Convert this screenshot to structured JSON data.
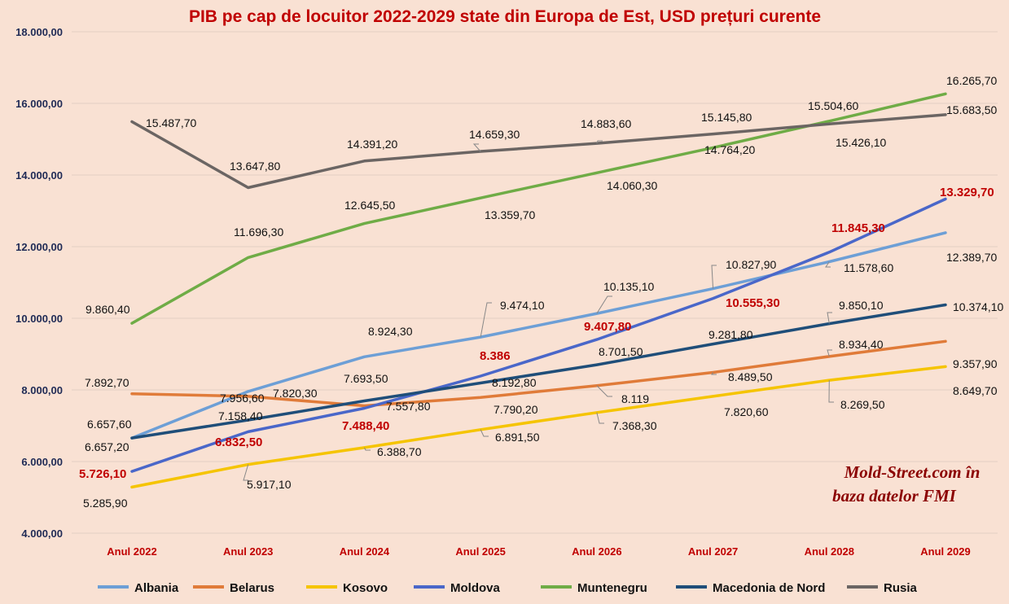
{
  "chart_data": {
    "type": "line",
    "title": "PIB pe cap de locuitor 2022-2029 state din Europa de Est, USD prețuri curente",
    "categories": [
      "Anul 2022",
      "Anul 2023",
      "Anul 2024",
      "Anul 2025",
      "Anul 2026",
      "Anul 2027",
      "Anul 2028",
      "Anul 2029"
    ],
    "ylim": [
      4000,
      18000
    ],
    "yticks": [
      {
        "value": 4000,
        "label": "4.000,00"
      },
      {
        "value": 6000,
        "label": "6.000,00"
      },
      {
        "value": 8000,
        "label": "8.000,00"
      },
      {
        "value": 10000,
        "label": "10.000,00"
      },
      {
        "value": 12000,
        "label": "12.000,00"
      },
      {
        "value": 14000,
        "label": "14.000,00"
      },
      {
        "value": 16000,
        "label": "16.000,00"
      },
      {
        "value": 18000,
        "label": "18.000,00"
      }
    ],
    "grid": true,
    "legend_position": "bottom",
    "series": [
      {
        "name": "Albania",
        "color": "#6d9fd6",
        "values": [
          6657.2,
          7956.6,
          8924.3,
          9474.1,
          10135.1,
          10827.9,
          11578.6,
          12389.7
        ],
        "labels": [
          "6.657,20",
          "7.956,60",
          "8.924,30",
          "9.474,10",
          "10.135,10",
          "10.827,90",
          "11.578,60",
          "12.389,70"
        ]
      },
      {
        "name": "Belarus",
        "color": "#e07b39",
        "values": [
          7892.7,
          7820.3,
          7557.8,
          7790.2,
          8119,
          8489.5,
          8934.4,
          9357.9
        ],
        "labels": [
          "7.892,70",
          "7.820,30",
          "7.557,80",
          "7.790,20",
          "8.119",
          "8.489,50",
          "8.934,40",
          "9.357,90"
        ]
      },
      {
        "name": "Kosovo",
        "color": "#f5c400",
        "values": [
          5285.9,
          5917.1,
          6388.7,
          6891.5,
          7368.3,
          7820.6,
          8269.5,
          8649.7
        ],
        "labels": [
          "5.285,90",
          "5.917,10",
          "6.388,70",
          "6.891,50",
          "7.368,30",
          "7.820,60",
          "8.269,50",
          "8.649,70"
        ]
      },
      {
        "name": "Moldova",
        "color": "#4a67c9",
        "values": [
          5726.1,
          6832.5,
          7488.4,
          8386,
          9407.8,
          10555.3,
          11845.3,
          13329.7
        ],
        "labels": [
          "5.726,10",
          "6.832,50",
          "7.488,40",
          "8.386",
          "9.407,80",
          "10.555,30",
          "11.845,30",
          "13.329,70"
        ]
      },
      {
        "name": "Muntenegru",
        "color": "#6fac46",
        "values": [
          9860.4,
          11696.3,
          12645.5,
          13359.7,
          14060.3,
          14764.2,
          15504.6,
          16265.7
        ],
        "labels": [
          "9.860,40",
          "11.696,30",
          "12.645,50",
          "13.359,70",
          "14.060,30",
          "14.764,20",
          "15.504,60",
          "16.265,70"
        ]
      },
      {
        "name": "Macedonia de Nord",
        "color": "#1f4e79",
        "values": [
          6657.6,
          7158.4,
          7693.5,
          8192.8,
          8701.5,
          9281.8,
          9850.1,
          10374.1
        ],
        "labels": [
          "6.657,60",
          "7.158,40",
          "7.693,50",
          "8.192,80",
          "8.701,50",
          "9.281,80",
          "9.850,10",
          "10.374,10"
        ]
      },
      {
        "name": "Rusia",
        "color": "#6b6563",
        "values": [
          15487.7,
          13647.8,
          14391.2,
          14659.3,
          14883.6,
          15145.8,
          15426.1,
          15683.5
        ],
        "labels": [
          "15.487,70",
          "13.647,80",
          "14.391,20",
          "14.659,30",
          "14.883,60",
          "15.145,80",
          "15.426,10",
          "15.683,50"
        ]
      }
    ]
  },
  "source_note": [
    "Mold-Street.com în",
    "baza datelor FMI"
  ]
}
